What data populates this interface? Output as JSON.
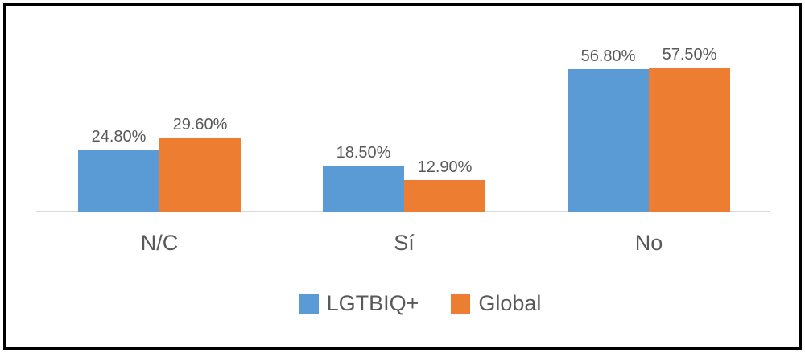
{
  "chart_data": {
    "type": "bar",
    "categories": [
      "N/C",
      "Sí",
      "No"
    ],
    "series": [
      {
        "name": "LGTBIQ+",
        "color": "#5B9BD5",
        "values": [
          24.8,
          18.5,
          56.8
        ],
        "data_labels": [
          "24.80%",
          "18.50%",
          "56.80%"
        ]
      },
      {
        "name": "Global",
        "color": "#ED7D31",
        "values": [
          29.6,
          12.9,
          57.5
        ],
        "data_labels": [
          "29.60%",
          "12.90%",
          "57.50%"
        ]
      }
    ],
    "title": "",
    "xlabel": "",
    "ylabel": "",
    "ylim": [
      0,
      70
    ],
    "grid": false,
    "legend_position": "bottom",
    "axis_line_color": "#D9D9D9",
    "text_color": "#595959",
    "frame_border_color": "#000000",
    "data_label_format": "0.00%"
  }
}
